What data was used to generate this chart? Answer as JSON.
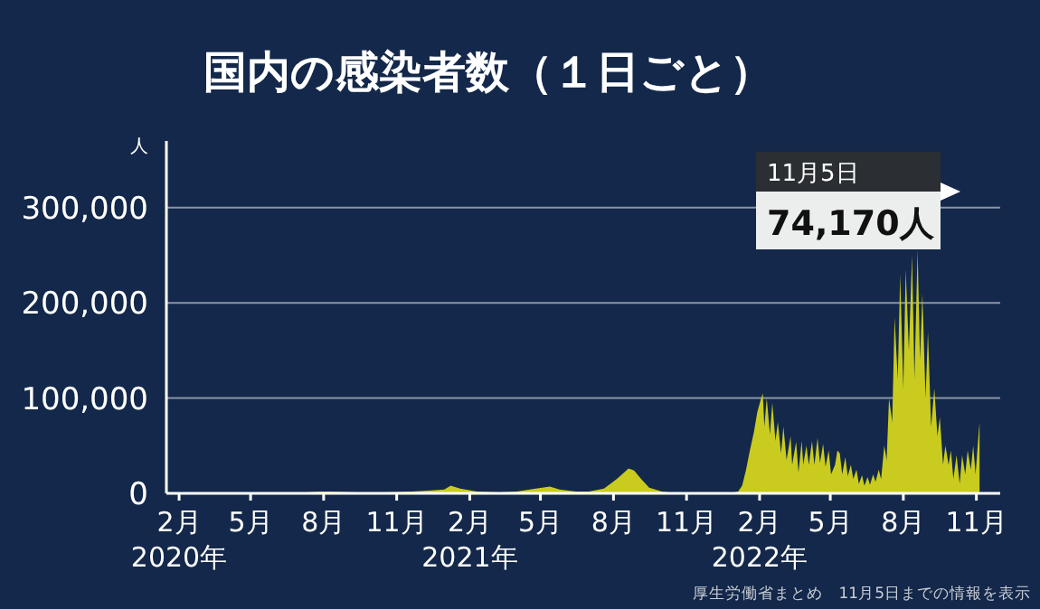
{
  "chart_data": {
    "type": "area",
    "title": "国内の感染者数（１日ごと）",
    "ylabel": "人",
    "x": [
      "2020-01-16",
      "2020-03-01",
      "2020-04-11",
      "2020-05-15",
      "2020-06-15",
      "2020-07-31",
      "2020-08-07",
      "2020-09-15",
      "2020-10-15",
      "2020-11-20",
      "2020-12-15",
      "2020-12-31",
      "2021-01-08",
      "2021-01-20",
      "2021-02-10",
      "2021-03-10",
      "2021-04-01",
      "2021-04-25",
      "2021-05-13",
      "2021-05-25",
      "2021-06-15",
      "2021-07-01",
      "2021-07-20",
      "2021-08-05",
      "2021-08-20",
      "2021-08-27",
      "2021-09-05",
      "2021-09-15",
      "2021-10-01",
      "2021-10-20",
      "2021-11-20",
      "2021-12-25",
      "2022-01-05",
      "2022-01-10",
      "2022-01-15",
      "2022-01-20",
      "2022-01-25",
      "2022-01-29",
      "2022-02-03",
      "2022-02-05",
      "2022-02-07",
      "2022-02-10",
      "2022-02-14",
      "2022-02-17",
      "2022-02-21",
      "2022-02-24",
      "2022-02-28",
      "2022-03-03",
      "2022-03-07",
      "2022-03-12",
      "2022-03-14",
      "2022-03-19",
      "2022-03-22",
      "2022-03-26",
      "2022-03-28",
      "2022-04-01",
      "2022-04-04",
      "2022-04-08",
      "2022-04-11",
      "2022-04-15",
      "2022-04-18",
      "2022-04-22",
      "2022-04-25",
      "2022-04-29",
      "2022-05-02",
      "2022-05-07",
      "2022-05-10",
      "2022-05-13",
      "2022-05-16",
      "2022-05-20",
      "2022-05-23",
      "2022-05-27",
      "2022-05-30",
      "2022-06-03",
      "2022-06-06",
      "2022-06-10",
      "2022-06-13",
      "2022-06-17",
      "2022-06-20",
      "2022-06-24",
      "2022-06-27",
      "2022-07-01",
      "2022-07-04",
      "2022-07-08",
      "2022-07-11",
      "2022-07-14",
      "2022-07-18",
      "2022-07-21",
      "2022-07-25",
      "2022-07-28",
      "2022-08-01",
      "2022-08-04",
      "2022-08-08",
      "2022-08-12",
      "2022-08-15",
      "2022-08-19",
      "2022-08-22",
      "2022-08-25",
      "2022-08-29",
      "2022-09-01",
      "2022-09-05",
      "2022-09-09",
      "2022-09-13",
      "2022-09-16",
      "2022-09-20",
      "2022-09-23",
      "2022-09-27",
      "2022-09-30",
      "2022-10-03",
      "2022-10-07",
      "2022-10-11",
      "2022-10-14",
      "2022-10-18",
      "2022-10-21",
      "2022-10-25",
      "2022-10-28",
      "2022-10-31",
      "2022-11-04",
      "2022-11-05"
    ],
    "series": [
      {
        "color": "#c9cc1e",
        "values": [
          0,
          0,
          1000,
          0,
          0,
          2000,
          2000,
          1000,
          1000,
          2000,
          3000,
          4000,
          8000,
          5000,
          2000,
          1000,
          2000,
          5000,
          7000,
          4000,
          2000,
          2000,
          5000,
          15000,
          26000,
          24000,
          15000,
          6000,
          2000,
          0,
          0,
          0,
          2000,
          8000,
          25000,
          46000,
          65000,
          85000,
          100000,
          105000,
          70000,
          100000,
          62000,
          95000,
          55000,
          75000,
          42000,
          70000,
          35000,
          60000,
          30000,
          54000,
          22000,
          55000,
          30000,
          50000,
          30000,
          55000,
          30000,
          58000,
          32000,
          52000,
          28000,
          45000,
          20000,
          30000,
          45000,
          42000,
          20000,
          38000,
          18000,
          30000,
          15000,
          25000,
          10000,
          19000,
          8000,
          17000,
          9000,
          20000,
          12000,
          25000,
          15000,
          50000,
          35000,
          100000,
          75000,
          185000,
          120000,
          230000,
          110000,
          235000,
          150000,
          250000,
          120000,
          256000,
          140000,
          210000,
          100000,
          170000,
          70000,
          110000,
          60000,
          80000,
          30000,
          50000,
          30000,
          45000,
          15000,
          40000,
          10000,
          40000,
          20000,
          45000,
          25000,
          50000,
          20000,
          65000,
          74170
        ]
      }
    ],
    "xlim": [
      "2020-01-16",
      "2022-12-01"
    ],
    "xticks": [
      {
        "value": "2020-02-01",
        "label": "2月\n2020年"
      },
      {
        "value": "2020-05-01",
        "label": "5月"
      },
      {
        "value": "2020-08-01",
        "label": "8月"
      },
      {
        "value": "2020-11-01",
        "label": "11月"
      },
      {
        "value": "2021-02-01",
        "label": "2月\n2021年"
      },
      {
        "value": "2021-05-01",
        "label": "5月"
      },
      {
        "value": "2021-08-01",
        "label": "8月"
      },
      {
        "value": "2021-11-01",
        "label": "11月"
      },
      {
        "value": "2022-02-01",
        "label": "2月\n2022年"
      },
      {
        "value": "2022-05-01",
        "label": "5月"
      },
      {
        "value": "2022-08-01",
        "label": "8月"
      },
      {
        "value": "2022-11-01",
        "label": "11月"
      }
    ],
    "ylim": [
      0,
      370000
    ],
    "yticks": [
      {
        "value": 0,
        "label": "0"
      },
      {
        "value": 100000,
        "label": "100,000"
      },
      {
        "value": 200000,
        "label": "200,000"
      },
      {
        "value": 300000,
        "label": "300,000"
      }
    ],
    "grid": "y",
    "annotations": [
      "11月5日\n74,170人",
      "厚生労働省まとめ　11月5日までの情報を表示"
    ]
  }
}
